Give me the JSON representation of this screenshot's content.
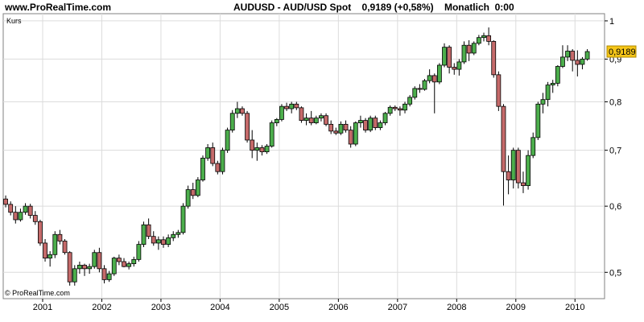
{
  "header": {
    "site": "www.ProRealTime.com",
    "title": "AUDUSD - AUD/USD Spot    0,9189 (+0,58%)    Monatlich  0:00"
  },
  "panel_label": "Kurs",
  "copyright": "© ProRealTime.com",
  "last_price_label": "0,9189",
  "colors": {
    "up": "#4cae4c",
    "down": "#c56a6a",
    "grid": "#dcdcdc",
    "price_box": "#f5c518"
  },
  "chart_data": {
    "type": "candlestick",
    "timeframe": "monthly",
    "instrument": "AUD/USD Spot",
    "xlabel": "",
    "ylabel": "Kurs",
    "y_scale": "log",
    "ylim": [
      0.465,
      1.02
    ],
    "xlim": [
      "2000-05",
      "2010-06"
    ],
    "x_ticks": [
      "2001",
      "2002",
      "2003",
      "2004",
      "2005",
      "2006",
      "2007",
      "2008",
      "2009",
      "2010"
    ],
    "y_ticks": [
      {
        "value": 0.5,
        "label": "0,5"
      },
      {
        "value": 0.6,
        "label": "0,6"
      },
      {
        "value": 0.7,
        "label": "0,7"
      },
      {
        "value": 0.8,
        "label": "0,8"
      },
      {
        "value": 0.9,
        "label": "0,9"
      },
      {
        "value": 1.0,
        "label": "1"
      }
    ],
    "last_value": 0.9189,
    "candles": [
      [
        "2000-05",
        0.612,
        0.618,
        0.598,
        0.603
      ],
      [
        "2000-06",
        0.603,
        0.608,
        0.585,
        0.59
      ],
      [
        "2000-07",
        0.59,
        0.6,
        0.572,
        0.578
      ],
      [
        "2000-08",
        0.578,
        0.596,
        0.575,
        0.59
      ],
      [
        "2000-09",
        0.59,
        0.605,
        0.586,
        0.6
      ],
      [
        "2000-10",
        0.6,
        0.604,
        0.58,
        0.585
      ],
      [
        "2000-11",
        0.585,
        0.592,
        0.57,
        0.575
      ],
      [
        "2000-12",
        0.575,
        0.578,
        0.538,
        0.542
      ],
      [
        "2001-01",
        0.542,
        0.548,
        0.515,
        0.52
      ],
      [
        "2001-02",
        0.52,
        0.53,
        0.508,
        0.525
      ],
      [
        "2001-03",
        0.525,
        0.56,
        0.52,
        0.555
      ],
      [
        "2001-04",
        0.555,
        0.562,
        0.54,
        0.545
      ],
      [
        "2001-05",
        0.545,
        0.548,
        0.525,
        0.528
      ],
      [
        "2001-06",
        0.528,
        0.53,
        0.482,
        0.487
      ],
      [
        "2001-07",
        0.487,
        0.51,
        0.482,
        0.505
      ],
      [
        "2001-08",
        0.505,
        0.515,
        0.498,
        0.51
      ],
      [
        "2001-09",
        0.51,
        0.512,
        0.495,
        0.505
      ],
      [
        "2001-10",
        0.505,
        0.512,
        0.498,
        0.508
      ],
      [
        "2001-11",
        0.508,
        0.532,
        0.505,
        0.528
      ],
      [
        "2001-12",
        0.528,
        0.535,
        0.5,
        0.505
      ],
      [
        "2002-01",
        0.505,
        0.51,
        0.485,
        0.49
      ],
      [
        "2002-02",
        0.49,
        0.502,
        0.487,
        0.498
      ],
      [
        "2002-03",
        0.498,
        0.522,
        0.495,
        0.52
      ],
      [
        "2002-04",
        0.52,
        0.525,
        0.51,
        0.515
      ],
      [
        "2002-05",
        0.515,
        0.52,
        0.507,
        0.508
      ],
      [
        "2002-06",
        0.508,
        0.515,
        0.504,
        0.512
      ],
      [
        "2002-07",
        0.512,
        0.522,
        0.508,
        0.518
      ],
      [
        "2002-08",
        0.518,
        0.545,
        0.515,
        0.54
      ],
      [
        "2002-09",
        0.54,
        0.575,
        0.536,
        0.57
      ],
      [
        "2002-10",
        0.57,
        0.58,
        0.548,
        0.552
      ],
      [
        "2002-11",
        0.552,
        0.56,
        0.538,
        0.542
      ],
      [
        "2002-12",
        0.542,
        0.552,
        0.532,
        0.547
      ],
      [
        "2003-01",
        0.547,
        0.552,
        0.535,
        0.54
      ],
      [
        "2003-02",
        0.54,
        0.555,
        0.536,
        0.55
      ],
      [
        "2003-03",
        0.55,
        0.56,
        0.545,
        0.555
      ],
      [
        "2003-04",
        0.555,
        0.562,
        0.55,
        0.558
      ],
      [
        "2003-05",
        0.558,
        0.605,
        0.555,
        0.6
      ],
      [
        "2003-06",
        0.6,
        0.635,
        0.596,
        0.628
      ],
      [
        "2003-07",
        0.628,
        0.64,
        0.612,
        0.618
      ],
      [
        "2003-08",
        0.618,
        0.65,
        0.615,
        0.645
      ],
      [
        "2003-09",
        0.645,
        0.69,
        0.642,
        0.685
      ],
      [
        "2003-10",
        0.685,
        0.712,
        0.68,
        0.705
      ],
      [
        "2003-11",
        0.705,
        0.715,
        0.67,
        0.675
      ],
      [
        "2003-12",
        0.675,
        0.68,
        0.655,
        0.66
      ],
      [
        "2004-01",
        0.66,
        0.705,
        0.655,
        0.7
      ],
      [
        "2004-02",
        0.7,
        0.745,
        0.695,
        0.74
      ],
      [
        "2004-03",
        0.74,
        0.782,
        0.735,
        0.775
      ],
      [
        "2004-04",
        0.775,
        0.8,
        0.765,
        0.785
      ],
      [
        "2004-05",
        0.785,
        0.79,
        0.77,
        0.775
      ],
      [
        "2004-06",
        0.775,
        0.78,
        0.715,
        0.72
      ],
      [
        "2004-07",
        0.72,
        0.74,
        0.685,
        0.7
      ],
      [
        "2004-08",
        0.7,
        0.715,
        0.68,
        0.705
      ],
      [
        "2004-09",
        0.705,
        0.71,
        0.69,
        0.697
      ],
      [
        "2004-10",
        0.697,
        0.712,
        0.693,
        0.708
      ],
      [
        "2004-11",
        0.708,
        0.76,
        0.705,
        0.755
      ],
      [
        "2004-12",
        0.755,
        0.765,
        0.748,
        0.762
      ],
      [
        "2005-01",
        0.762,
        0.795,
        0.758,
        0.79
      ],
      [
        "2005-02",
        0.79,
        0.798,
        0.78,
        0.785
      ],
      [
        "2005-03",
        0.785,
        0.8,
        0.775,
        0.795
      ],
      [
        "2005-04",
        0.795,
        0.8,
        0.782,
        0.787
      ],
      [
        "2005-05",
        0.787,
        0.79,
        0.755,
        0.76
      ],
      [
        "2005-06",
        0.76,
        0.775,
        0.75,
        0.765
      ],
      [
        "2005-07",
        0.765,
        0.78,
        0.75,
        0.755
      ],
      [
        "2005-08",
        0.755,
        0.77,
        0.752,
        0.765
      ],
      [
        "2005-09",
        0.765,
        0.775,
        0.758,
        0.77
      ],
      [
        "2005-10",
        0.77,
        0.775,
        0.748,
        0.752
      ],
      [
        "2005-11",
        0.752,
        0.76,
        0.732,
        0.738
      ],
      [
        "2005-12",
        0.738,
        0.745,
        0.73,
        0.734
      ],
      [
        "2006-01",
        0.734,
        0.758,
        0.73,
        0.752
      ],
      [
        "2006-02",
        0.752,
        0.76,
        0.735,
        0.74
      ],
      [
        "2006-03",
        0.74,
        0.748,
        0.705,
        0.712
      ],
      [
        "2006-04",
        0.712,
        0.758,
        0.708,
        0.755
      ],
      [
        "2006-05",
        0.755,
        0.77,
        0.745,
        0.76
      ],
      [
        "2006-06",
        0.76,
        0.765,
        0.735,
        0.74
      ],
      [
        "2006-07",
        0.74,
        0.77,
        0.736,
        0.765
      ],
      [
        "2006-08",
        0.765,
        0.77,
        0.74,
        0.745
      ],
      [
        "2006-09",
        0.745,
        0.76,
        0.74,
        0.755
      ],
      [
        "2006-10",
        0.755,
        0.778,
        0.75,
        0.775
      ],
      [
        "2006-11",
        0.775,
        0.792,
        0.77,
        0.788
      ],
      [
        "2006-12",
        0.788,
        0.792,
        0.78,
        0.785
      ],
      [
        "2007-01",
        0.785,
        0.79,
        0.77,
        0.782
      ],
      [
        "2007-02",
        0.782,
        0.8,
        0.775,
        0.795
      ],
      [
        "2007-03",
        0.795,
        0.815,
        0.79,
        0.81
      ],
      [
        "2007-04",
        0.81,
        0.835,
        0.805,
        0.83
      ],
      [
        "2007-05",
        0.83,
        0.84,
        0.82,
        0.828
      ],
      [
        "2007-06",
        0.828,
        0.852,
        0.825,
        0.848
      ],
      [
        "2007-07",
        0.848,
        0.875,
        0.842,
        0.86
      ],
      [
        "2007-08",
        0.86,
        0.865,
        0.775,
        0.845
      ],
      [
        "2007-09",
        0.845,
        0.89,
        0.84,
        0.885
      ],
      [
        "2007-10",
        0.885,
        0.94,
        0.88,
        0.93
      ],
      [
        "2007-11",
        0.93,
        0.935,
        0.865,
        0.88
      ],
      [
        "2007-12",
        0.88,
        0.89,
        0.862,
        0.875
      ],
      [
        "2008-01",
        0.875,
        0.9,
        0.86,
        0.893
      ],
      [
        "2008-02",
        0.893,
        0.945,
        0.888,
        0.935
      ],
      [
        "2008-03",
        0.935,
        0.948,
        0.895,
        0.915
      ],
      [
        "2008-04",
        0.915,
        0.945,
        0.91,
        0.94
      ],
      [
        "2008-05",
        0.94,
        0.962,
        0.935,
        0.955
      ],
      [
        "2008-06",
        0.955,
        0.968,
        0.945,
        0.96
      ],
      [
        "2008-07",
        0.96,
        0.982,
        0.935,
        0.945
      ],
      [
        "2008-08",
        0.945,
        0.948,
        0.855,
        0.862
      ],
      [
        "2008-09",
        0.862,
        0.87,
        0.78,
        0.79
      ],
      [
        "2008-10",
        0.79,
        0.795,
        0.601,
        0.66
      ],
      [
        "2008-11",
        0.66,
        0.69,
        0.62,
        0.645
      ],
      [
        "2008-12",
        0.645,
        0.705,
        0.63,
        0.7
      ],
      [
        "2009-01",
        0.7,
        0.705,
        0.63,
        0.64
      ],
      [
        "2009-02",
        0.64,
        0.66,
        0.622,
        0.635
      ],
      [
        "2009-03",
        0.635,
        0.7,
        0.628,
        0.69
      ],
      [
        "2009-04",
        0.69,
        0.735,
        0.685,
        0.725
      ],
      [
        "2009-05",
        0.725,
        0.8,
        0.72,
        0.795
      ],
      [
        "2009-06",
        0.795,
        0.82,
        0.775,
        0.805
      ],
      [
        "2009-07",
        0.805,
        0.845,
        0.79,
        0.838
      ],
      [
        "2009-08",
        0.838,
        0.85,
        0.82,
        0.842
      ],
      [
        "2009-09",
        0.842,
        0.885,
        0.835,
        0.882
      ],
      [
        "2009-10",
        0.882,
        0.935,
        0.878,
        0.905
      ],
      [
        "2009-11",
        0.905,
        0.935,
        0.895,
        0.92
      ],
      [
        "2009-12",
        0.92,
        0.925,
        0.87,
        0.897
      ],
      [
        "2010-01",
        0.897,
        0.922,
        0.858,
        0.887
      ],
      [
        "2010-02",
        0.887,
        0.905,
        0.875,
        0.9
      ],
      [
        "2010-03",
        0.9,
        0.925,
        0.896,
        0.9189
      ]
    ]
  }
}
